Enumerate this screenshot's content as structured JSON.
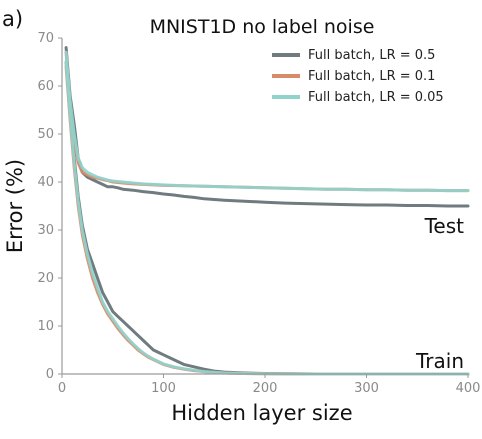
{
  "panel_label": "a)",
  "chart_data": {
    "type": "line",
    "title": "MNIST1D no label noise",
    "xlabel": "Hidden layer size",
    "ylabel": "Error (%)",
    "xlim": [
      0,
      400
    ],
    "ylim": [
      0,
      70
    ],
    "xticks": [
      0,
      100,
      200,
      300,
      400
    ],
    "yticks": [
      0,
      10,
      20,
      30,
      40,
      50,
      60,
      70
    ],
    "grid": false,
    "legend_position": "top-right",
    "annotations": [
      "Test",
      "Train"
    ],
    "series": [
      {
        "name": "Full batch, LR = 0.5",
        "color": "#6f7b7f",
        "test": {
          "x": [
            4,
            8,
            12,
            16,
            20,
            25,
            30,
            35,
            40,
            45,
            50,
            55,
            60,
            70,
            80,
            90,
            100,
            110,
            120,
            130,
            140,
            160,
            180,
            200,
            220,
            240,
            260,
            280,
            300,
            320,
            340,
            360,
            380,
            400
          ],
          "y": [
            68,
            58,
            52,
            45,
            42,
            41,
            40.5,
            40,
            39.5,
            39,
            39,
            38.8,
            38.5,
            38.3,
            38,
            37.8,
            37.5,
            37.3,
            37,
            36.8,
            36.5,
            36.2,
            36,
            35.8,
            35.6,
            35.5,
            35.4,
            35.3,
            35.2,
            35.2,
            35.1,
            35.1,
            35,
            35
          ]
        },
        "train": {
          "x": [
            4,
            8,
            12,
            16,
            20,
            25,
            30,
            35,
            40,
            45,
            50,
            55,
            60,
            65,
            70,
            75,
            80,
            85,
            90,
            95,
            100,
            110,
            120,
            130,
            140,
            150,
            160,
            180,
            200,
            250,
            300,
            350,
            400
          ],
          "y": [
            65,
            55,
            45,
            37,
            31,
            26,
            23,
            20,
            17,
            15,
            13,
            12,
            11,
            10,
            9,
            8,
            7,
            6,
            5,
            4.5,
            4,
            3,
            2,
            1.5,
            1,
            0.6,
            0.4,
            0.2,
            0.1,
            0,
            0,
            0,
            0
          ]
        }
      },
      {
        "name": "Full batch, LR = 0.1",
        "color": "#d98a69",
        "test": {
          "x": [
            4,
            8,
            12,
            16,
            20,
            25,
            30,
            35,
            40,
            45,
            50,
            60,
            70,
            80,
            90,
            100,
            120,
            140,
            160,
            180,
            200,
            220,
            240,
            260,
            280,
            300,
            320,
            340,
            360,
            380,
            400
          ],
          "y": [
            67,
            56,
            49,
            44,
            42,
            41.5,
            41,
            40.8,
            40.5,
            40.3,
            40,
            39.8,
            39.6,
            39.5,
            39.4,
            39.3,
            39.2,
            39.1,
            39,
            38.9,
            38.8,
            38.7,
            38.6,
            38.5,
            38.5,
            38.4,
            38.4,
            38.3,
            38.3,
            38.2,
            38.2
          ]
        },
        "train": {
          "x": [
            4,
            8,
            12,
            16,
            20,
            25,
            30,
            35,
            40,
            45,
            50,
            55,
            60,
            65,
            70,
            75,
            80,
            85,
            90,
            95,
            100,
            110,
            120,
            130,
            140,
            150,
            160,
            180,
            200,
            250,
            300,
            350,
            400
          ],
          "y": [
            64,
            53,
            43,
            35,
            29,
            24,
            20,
            17,
            14.5,
            12.5,
            11,
            9.5,
            8.2,
            7,
            6,
            5,
            4.2,
            3.5,
            3,
            2.5,
            2,
            1.4,
            1,
            0.7,
            0.5,
            0.3,
            0.2,
            0.1,
            0.05,
            0,
            0,
            0,
            0
          ]
        }
      },
      {
        "name": "Full batch, LR = 0.05",
        "color": "#8fd3cc",
        "test": {
          "x": [
            4,
            8,
            12,
            16,
            20,
            25,
            30,
            35,
            40,
            45,
            50,
            60,
            70,
            80,
            90,
            100,
            120,
            140,
            160,
            180,
            200,
            220,
            240,
            260,
            280,
            300,
            320,
            340,
            360,
            380,
            400
          ],
          "y": [
            67,
            57,
            50,
            45,
            43,
            42,
            41.5,
            41,
            40.7,
            40.4,
            40.2,
            40,
            39.8,
            39.6,
            39.5,
            39.4,
            39.2,
            39.1,
            39,
            38.9,
            38.8,
            38.7,
            38.6,
            38.5,
            38.5,
            38.4,
            38.4,
            38.3,
            38.3,
            38.2,
            38.2
          ]
        },
        "train": {
          "x": [
            4,
            8,
            12,
            16,
            20,
            25,
            30,
            35,
            40,
            45,
            50,
            55,
            60,
            65,
            70,
            75,
            80,
            85,
            90,
            95,
            100,
            110,
            120,
            130,
            140,
            150,
            160,
            180,
            200,
            250,
            300,
            350,
            400
          ],
          "y": [
            65,
            54,
            44,
            36,
            30,
            25,
            21,
            18,
            15,
            13,
            11.5,
            10,
            8.6,
            7.4,
            6.3,
            5.3,
            4.4,
            3.7,
            3.1,
            2.6,
            2.1,
            1.5,
            1.1,
            0.8,
            0.5,
            0.35,
            0.2,
            0.1,
            0.05,
            0,
            0,
            0,
            0
          ]
        }
      }
    ]
  }
}
